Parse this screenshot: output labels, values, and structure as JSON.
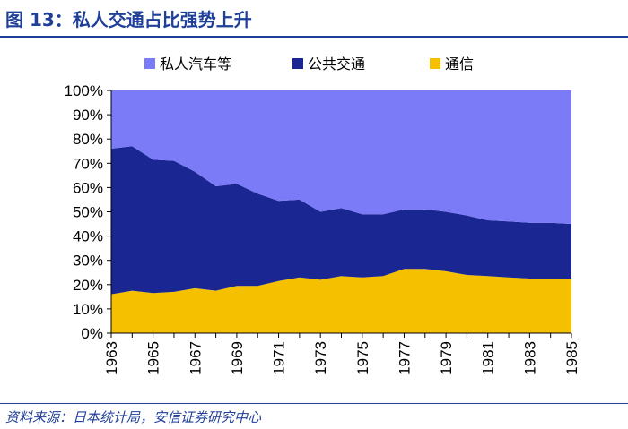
{
  "header": {
    "title": "图 13：私人交通占比强势上升"
  },
  "source": {
    "text": "资料来源：日本统计局，安信证券研究中心"
  },
  "colors": {
    "title": "#1f3f99",
    "private_car": "#7b7bf7",
    "public": "#1a2793",
    "communication": "#f5c000"
  },
  "chart_data": {
    "type": "area",
    "stacked": true,
    "x": [
      1963,
      1964,
      1965,
      1966,
      1967,
      1968,
      1969,
      1970,
      1971,
      1972,
      1973,
      1974,
      1975,
      1976,
      1977,
      1978,
      1979,
      1980,
      1981,
      1982,
      1983,
      1984,
      1985
    ],
    "x_tick_labels": [
      "1963",
      "1965",
      "1967",
      "1969",
      "1971",
      "1973",
      "1975",
      "1977",
      "1979",
      "1981",
      "1983",
      "1985"
    ],
    "y_tick_labels": [
      "0%",
      "10%",
      "20%",
      "30%",
      "40%",
      "50%",
      "60%",
      "70%",
      "80%",
      "90%",
      "100%"
    ],
    "ylim": [
      0,
      100
    ],
    "legend_position": "top",
    "series": [
      {
        "name": "私人汽车等",
        "color": "#7b7bf7",
        "values": [
          24,
          23,
          28.5,
          29,
          34,
          39.5,
          38.5,
          42.5,
          45.5,
          45,
          50,
          48.5,
          51,
          51,
          49,
          49,
          50,
          51.5,
          53.5,
          54,
          54.5,
          54.5,
          55
        ]
      },
      {
        "name": "公共交通",
        "color": "#1a2793",
        "values": [
          60,
          59.5,
          55,
          54,
          48,
          43,
          42,
          38,
          33,
          32,
          28,
          28,
          26,
          25.5,
          24.5,
          24.5,
          24.5,
          24.5,
          23,
          23,
          23,
          23,
          22.5
        ]
      },
      {
        "name": "通信",
        "color": "#f5c000",
        "values": [
          16,
          17.5,
          16.5,
          17,
          18.5,
          17.5,
          19.5,
          19.5,
          21.5,
          23,
          22,
          23.5,
          23,
          23.5,
          26.5,
          26.5,
          25.5,
          24,
          23.5,
          23,
          22.5,
          22.5,
          22.5
        ]
      }
    ]
  }
}
